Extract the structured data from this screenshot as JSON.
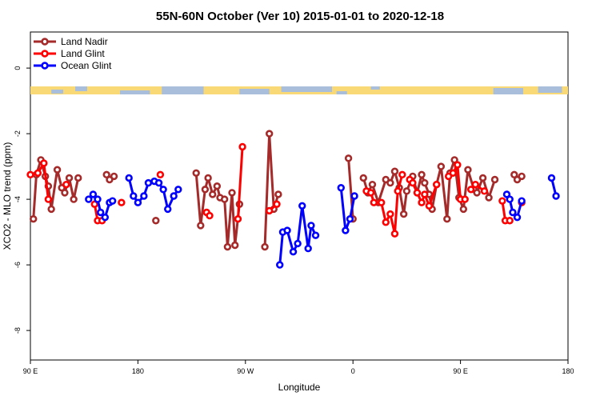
{
  "chart_data": {
    "type": "line",
    "title": "55N-60N October (Ver 10)   2015-01-01 to 2020-12-18",
    "xlabel": "Longitude",
    "ylabel": "XCO2 - MLO trend (ppm)",
    "xlim": [
      90,
      450
    ],
    "ylim": [
      -8.9,
      1.1
    ],
    "x_ticks": [
      {
        "value": 90,
        "label": "90 E"
      },
      {
        "value": 162,
        "label": "180"
      },
      {
        "value": 234,
        "label": "90 W"
      },
      {
        "value": 306,
        "label": "0"
      },
      {
        "value": 378,
        "label": "90 E"
      },
      {
        "value": 450,
        "label": "180"
      }
    ],
    "y_ticks": [
      {
        "value": 0,
        "label": "0"
      },
      {
        "value": -2,
        "label": "-2"
      },
      {
        "value": -4,
        "label": "-4"
      },
      {
        "value": -6,
        "label": "-6"
      },
      {
        "value": -8,
        "label": "-8"
      }
    ],
    "grid": false,
    "legend_position": "top-left",
    "land_sea_band_colors": {
      "land": "#f9d876",
      "ocean": "#a9bedb"
    },
    "series": [
      {
        "name": "Land Nadir",
        "color": "#a52a2a",
        "segments": [
          [
            [
              92,
              -4.6
            ],
            [
              94,
              -3.25
            ],
            [
              97,
              -2.8
            ],
            [
              100,
              -3.3
            ],
            [
              102,
              -3.6
            ],
            [
              104,
              -4.3
            ],
            [
              108,
              -3.1
            ],
            [
              111,
              -3.65
            ],
            [
              113,
              -3.8
            ],
            [
              116,
              -3.35
            ],
            [
              119,
              -4.0
            ],
            [
              122,
              -3.35
            ]
          ],
          [
            [
              141,
              -3.25
            ],
            [
              143,
              -3.4
            ],
            [
              146,
              -3.3
            ]
          ],
          [
            [
              174,
              -4.65
            ]
          ],
          [
            [
              201,
              -3.2
            ],
            [
              204,
              -4.8
            ],
            [
              207,
              -3.7
            ],
            [
              209,
              -3.35
            ],
            [
              212,
              -3.85
            ],
            [
              215,
              -3.6
            ],
            [
              217,
              -3.95
            ],
            [
              220,
              -4.0
            ],
            [
              222,
              -5.45
            ],
            [
              225,
              -3.8
            ],
            [
              227,
              -5.4
            ],
            [
              230,
              -4.15
            ]
          ],
          [
            [
              247,
              -5.45
            ],
            [
              250,
              -2.0
            ],
            [
              253,
              -4.3
            ],
            [
              256,
              -3.85
            ]
          ],
          [
            [
              303,
              -2.75
            ],
            [
              306,
              -4.6
            ]
          ],
          [
            [
              313,
              -3.35
            ],
            [
              316,
              -3.8
            ],
            [
              319,
              -3.55
            ],
            [
              323,
              -4.1
            ],
            [
              328,
              -3.4
            ],
            [
              331,
              -3.5
            ],
            [
              334,
              -3.15
            ],
            [
              337,
              -3.65
            ],
            [
              340,
              -4.45
            ],
            [
              342,
              -3.75
            ],
            [
              346,
              -3.3
            ],
            [
              349,
              -3.8
            ],
            [
              352,
              -3.25
            ],
            [
              354,
              -3.5
            ],
            [
              357,
              -3.85
            ],
            [
              359,
              -4.3
            ],
            [
              362,
              -3.55
            ],
            [
              365,
              -3.0
            ],
            [
              369,
              -4.6
            ],
            [
              371,
              -3.2
            ],
            [
              374,
              -2.8
            ],
            [
              377,
              -3.95
            ],
            [
              380,
              -4.3
            ],
            [
              383,
              -3.1
            ],
            [
              387,
              -3.7
            ],
            [
              389,
              -3.8
            ],
            [
              393,
              -3.35
            ],
            [
              397,
              -3.95
            ],
            [
              401,
              -3.4
            ]
          ],
          [
            [
              414,
              -3.25
            ],
            [
              416,
              -3.4
            ],
            [
              419,
              -3.3
            ]
          ]
        ]
      },
      {
        "name": "Land Glint",
        "color": "#ff0000",
        "segments": [
          [
            [
              90,
              -3.25
            ],
            [
              95,
              -3.2
            ],
            [
              99,
              -2.9
            ],
            [
              102,
              -4.0
            ]
          ],
          [
            [
              114,
              -3.55
            ]
          ],
          [
            [
              133,
              -4.15
            ],
            [
              135,
              -4.65
            ],
            [
              138,
              -4.65
            ]
          ],
          [
            [
              151,
              -4.1
            ]
          ],
          [
            [
              177,
              -3.25
            ]
          ],
          [
            [
              208,
              -4.4
            ],
            [
              210,
              -4.5
            ]
          ],
          [
            [
              229,
              -4.6
            ],
            [
              232,
              -2.4
            ]
          ],
          [
            [
              250,
              -4.35
            ],
            [
              255,
              -4.15
            ]
          ],
          [
            [
              315,
              -3.75
            ],
            [
              318,
              -3.8
            ],
            [
              320,
              -4.1
            ],
            [
              325,
              -4.1
            ],
            [
              328,
              -4.7
            ],
            [
              331,
              -4.45
            ],
            [
              334,
              -5.05
            ],
            [
              336,
              -3.75
            ],
            [
              339,
              -3.25
            ]
          ],
          [
            [
              344,
              -3.4
            ],
            [
              346,
              -3.5
            ],
            [
              349,
              -3.8
            ],
            [
              352,
              -4.1
            ],
            [
              354,
              -3.85
            ],
            [
              357,
              -4.2
            ],
            [
              362,
              -3.55
            ]
          ],
          [
            [
              370,
              -3.3
            ],
            [
              373,
              -3.2
            ],
            [
              376,
              -2.95
            ],
            [
              378,
              -4.0
            ],
            [
              381,
              -4.0
            ]
          ],
          [
            [
              385,
              -3.7
            ],
            [
              388,
              -3.55
            ],
            [
              394,
              -3.75
            ]
          ],
          [
            [
              406,
              -4.05
            ],
            [
              408,
              -4.65
            ],
            [
              411,
              -4.65
            ]
          ],
          [
            [
              419,
              -4.1
            ]
          ]
        ]
      },
      {
        "name": "Ocean Glint",
        "color": "#0000ff",
        "segments": [
          [
            [
              129,
              -4.0
            ],
            [
              132,
              -3.85
            ],
            [
              135,
              -4.0
            ],
            [
              137,
              -4.4
            ],
            [
              140,
              -4.55
            ],
            [
              143,
              -4.1
            ],
            [
              145,
              -4.05
            ]
          ],
          [
            [
              156,
              -3.35
            ],
            [
              159,
              -3.9
            ],
            [
              162,
              -4.1
            ],
            [
              166,
              -3.9
            ],
            [
              169,
              -3.5
            ],
            [
              173,
              -3.45
            ],
            [
              176,
              -3.5
            ],
            [
              179,
              -3.7
            ],
            [
              182,
              -4.3
            ],
            [
              186,
              -3.9
            ],
            [
              189,
              -3.7
            ]
          ],
          [
            [
              257,
              -6.0
            ],
            [
              259,
              -5.0
            ],
            [
              262,
              -4.95
            ],
            [
              266,
              -5.6
            ],
            [
              269,
              -5.35
            ],
            [
              272,
              -4.2
            ],
            [
              276,
              -5.5
            ],
            [
              278,
              -4.8
            ],
            [
              281,
              -5.1
            ]
          ],
          [
            [
              298,
              -3.65
            ],
            [
              301,
              -4.95
            ],
            [
              304,
              -4.6
            ],
            [
              307,
              -3.9
            ]
          ],
          [
            [
              409,
              -3.85
            ],
            [
              411,
              -4.0
            ],
            [
              413,
              -4.4
            ],
            [
              416,
              -4.55
            ],
            [
              419,
              -4.05
            ]
          ],
          [
            [
              439,
              -3.35
            ],
            [
              442,
              -3.9
            ]
          ]
        ]
      }
    ]
  }
}
